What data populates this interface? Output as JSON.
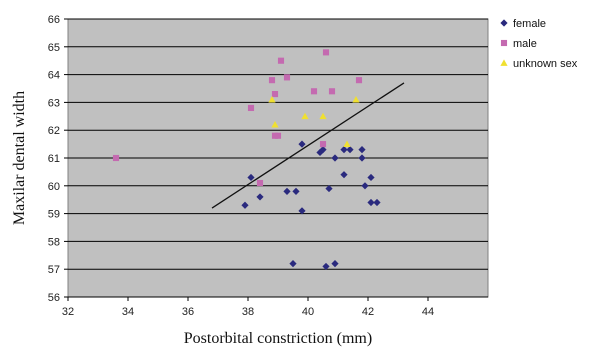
{
  "chart_data": {
    "type": "scatter",
    "title": "",
    "xlabel": "Postorbital constriction (mm)",
    "ylabel": "Maxilar dental width",
    "xlim": [
      32,
      46
    ],
    "ylim": [
      56,
      66
    ],
    "xticks": [
      "32",
      "34",
      "36",
      "38",
      "40",
      "42",
      "44"
    ],
    "yticks": [
      "56",
      "57",
      "58",
      "59",
      "60",
      "61",
      "62",
      "63",
      "64",
      "65",
      "66"
    ],
    "grid": "horizontal",
    "legend_position": "right",
    "series": [
      {
        "name": "female",
        "marker": "diamond",
        "color": "#2a2a7e",
        "points": [
          [
            37.9,
            59.3
          ],
          [
            38.1,
            60.3
          ],
          [
            38.4,
            59.6
          ],
          [
            39.3,
            59.8
          ],
          [
            39.5,
            57.2
          ],
          [
            39.6,
            59.8
          ],
          [
            39.8,
            59.1
          ],
          [
            39.8,
            61.5
          ],
          [
            40.4,
            61.2
          ],
          [
            40.5,
            61.3
          ],
          [
            40.6,
            57.1
          ],
          [
            40.7,
            59.9
          ],
          [
            40.9,
            57.2
          ],
          [
            40.9,
            61.0
          ],
          [
            41.2,
            60.4
          ],
          [
            41.2,
            61.3
          ],
          [
            41.4,
            61.3
          ],
          [
            41.8,
            61.3
          ],
          [
            41.8,
            61.0
          ],
          [
            41.9,
            60.0
          ],
          [
            42.1,
            60.3
          ],
          [
            42.1,
            59.4
          ],
          [
            42.3,
            59.4
          ]
        ]
      },
      {
        "name": "male",
        "marker": "square",
        "color": "#c46ab0",
        "points": [
          [
            33.6,
            61.0
          ],
          [
            38.1,
            62.8
          ],
          [
            38.4,
            60.1
          ],
          [
            38.8,
            63.8
          ],
          [
            38.9,
            63.3
          ],
          [
            38.9,
            61.8
          ],
          [
            39.0,
            61.8
          ],
          [
            39.1,
            64.5
          ],
          [
            39.3,
            63.9
          ],
          [
            40.2,
            63.4
          ],
          [
            40.5,
            61.5
          ],
          [
            40.6,
            64.8
          ],
          [
            40.8,
            63.4
          ],
          [
            41.7,
            63.8
          ]
        ]
      },
      {
        "name": "unknown sex",
        "marker": "triangle",
        "color": "#f0e030",
        "points": [
          [
            38.8,
            63.1
          ],
          [
            38.9,
            62.2
          ],
          [
            39.9,
            62.5
          ],
          [
            40.5,
            62.5
          ],
          [
            41.3,
            61.5
          ],
          [
            41.6,
            63.1
          ]
        ]
      }
    ],
    "trendline": {
      "x": [
        36.8,
        43.2
      ],
      "y": [
        59.2,
        63.7
      ]
    }
  }
}
